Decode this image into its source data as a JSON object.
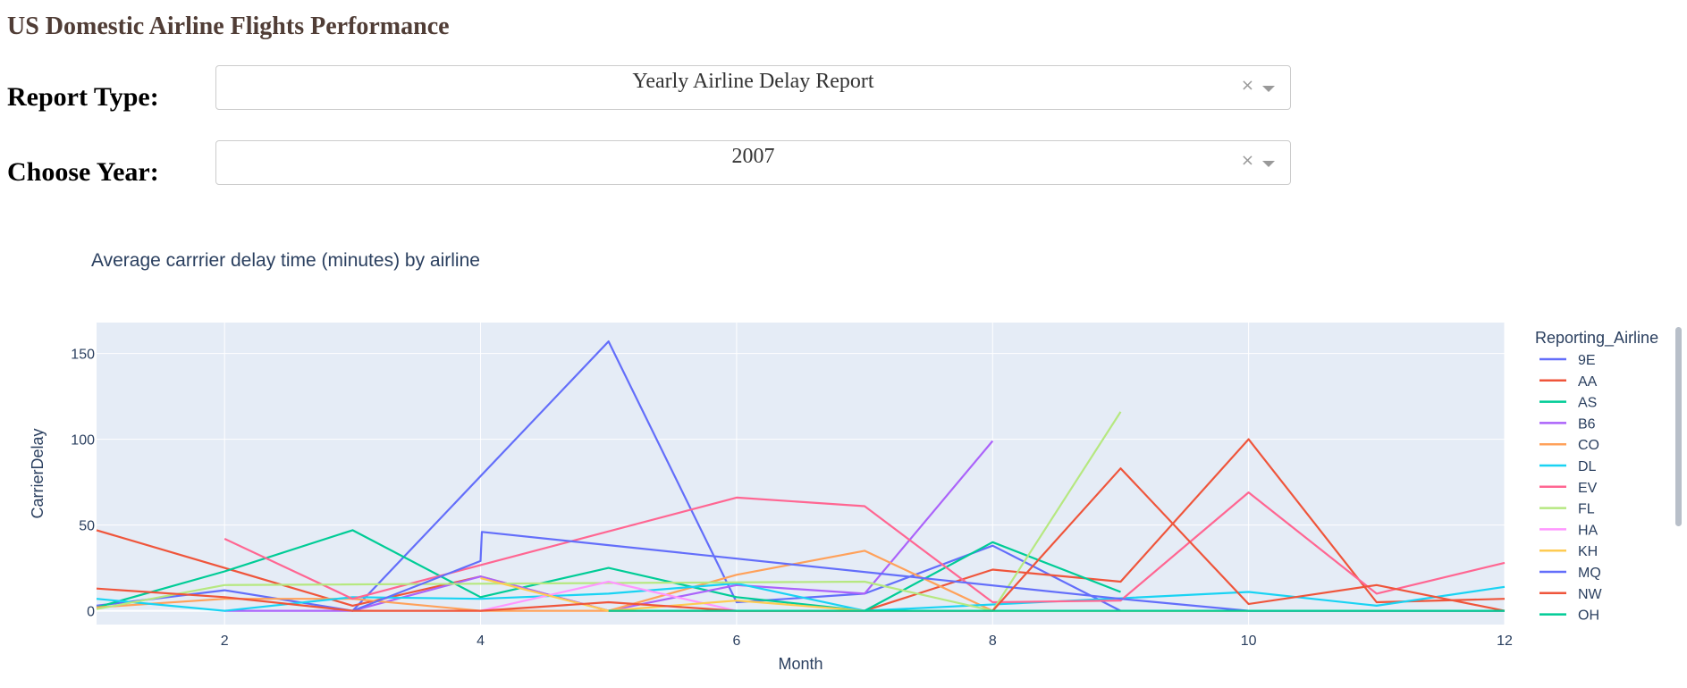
{
  "header": {
    "title": "US Domestic Airline Flights Performance"
  },
  "controls": {
    "report_type": {
      "label": "Report Type:",
      "value": "Yearly Airline Delay Report",
      "clear_icon": "×"
    },
    "year": {
      "label": "Choose Year:",
      "value": "2007",
      "clear_icon": "×"
    }
  },
  "chart_data": {
    "type": "line",
    "title": "Average carrrier delay time (minutes) by airline",
    "xlabel": "Month",
    "ylabel": "CarrierDelay",
    "xlim": [
      1,
      12
    ],
    "ylim": [
      -8,
      168
    ],
    "x_ticks": [
      2,
      4,
      6,
      8,
      10,
      12
    ],
    "y_ticks": [
      0,
      50,
      100,
      150
    ],
    "grid": true,
    "background": "#e5ecf6",
    "legend": {
      "title": "Reporting_Airline",
      "position": "right"
    },
    "series": [
      {
        "name": "9E",
        "color": "#636efa",
        "points": [
          [
            1,
            3
          ],
          [
            2,
            12
          ],
          [
            3,
            0
          ],
          [
            5,
            157
          ],
          [
            6,
            5
          ],
          [
            7,
            10
          ],
          [
            8,
            38
          ],
          [
            9,
            0
          ]
        ]
      },
      {
        "name": "AA",
        "color": "#ef553b",
        "points": [
          [
            1,
            47
          ],
          [
            2,
            25
          ],
          [
            3,
            3
          ],
          [
            4,
            20
          ],
          [
            5,
            0
          ],
          [
            6,
            0
          ],
          [
            7,
            0
          ],
          [
            8,
            24
          ],
          [
            9,
            17
          ],
          [
            10,
            100
          ],
          [
            11,
            5
          ],
          [
            12,
            7
          ]
        ]
      },
      {
        "name": "AS",
        "color": "#00cc96",
        "points": [
          [
            1,
            2
          ],
          [
            2,
            23
          ],
          [
            3,
            47
          ],
          [
            4,
            8
          ],
          [
            5,
            25
          ],
          [
            6,
            8
          ],
          [
            7,
            0
          ],
          [
            8,
            40
          ],
          [
            9,
            11
          ]
        ]
      },
      {
        "name": "B6",
        "color": "#ab63fa",
        "points": [
          [
            2,
            0
          ],
          [
            3,
            0
          ],
          [
            4,
            20
          ],
          [
            5,
            0
          ],
          [
            6,
            15
          ],
          [
            7,
            10
          ],
          [
            8,
            99
          ]
        ]
      },
      {
        "name": "CO",
        "color": "#ffa15a",
        "points": [
          [
            1,
            2
          ],
          [
            2,
            7
          ],
          [
            3,
            7
          ],
          [
            4,
            0
          ],
          [
            5,
            0
          ],
          [
            6,
            21
          ],
          [
            7,
            35
          ],
          [
            8,
            0
          ],
          [
            9,
            0
          ],
          [
            10,
            0
          ],
          [
            11,
            0
          ],
          [
            12,
            0
          ]
        ]
      },
      {
        "name": "DL",
        "color": "#19d3f3",
        "points": [
          [
            1,
            7
          ],
          [
            2,
            0
          ],
          [
            3,
            8
          ],
          [
            4,
            7
          ],
          [
            5,
            10
          ],
          [
            6,
            16
          ],
          [
            7,
            0
          ],
          [
            10,
            11
          ],
          [
            11,
            3
          ],
          [
            12,
            14
          ]
        ]
      },
      {
        "name": "EV",
        "color": "#ff6692",
        "points": [
          [
            2,
            42
          ],
          [
            3,
            7
          ],
          [
            6,
            66
          ],
          [
            7,
            61
          ],
          [
            8,
            5
          ],
          [
            9,
            6
          ],
          [
            10,
            69
          ],
          [
            11,
            10
          ],
          [
            12,
            28
          ]
        ]
      },
      {
        "name": "FL",
        "color": "#b6e880",
        "points": [
          [
            1,
            1
          ],
          [
            2,
            15
          ],
          [
            7,
            17
          ],
          [
            8,
            0
          ],
          [
            9,
            116
          ]
        ]
      },
      {
        "name": "HA",
        "color": "#ff97ff",
        "points": [
          [
            4,
            0
          ],
          [
            5,
            17
          ],
          [
            6,
            0
          ]
        ]
      },
      {
        "name": "KH",
        "color": "#fecb52",
        "points": [
          [
            4,
            19
          ],
          [
            5,
            0
          ],
          [
            6,
            6
          ],
          [
            7,
            0
          ],
          [
            9,
            0
          ],
          [
            10,
            0
          ],
          [
            11,
            0
          ],
          [
            12,
            0
          ]
        ]
      },
      {
        "name": "MQ",
        "color": "#636efa",
        "points": [
          [
            3,
            0
          ],
          [
            4,
            29
          ],
          [
            4.01,
            46
          ],
          [
            9,
            7
          ],
          [
            10,
            0
          ],
          [
            11,
            0
          ],
          [
            12,
            0
          ]
        ]
      },
      {
        "name": "NW",
        "color": "#ef553b",
        "points": [
          [
            1,
            13
          ],
          [
            2,
            8
          ],
          [
            3,
            0
          ],
          [
            4,
            0
          ],
          [
            5,
            5
          ],
          [
            6,
            0
          ],
          [
            7,
            0
          ],
          [
            8,
            0
          ],
          [
            9,
            83
          ],
          [
            10,
            4
          ],
          [
            11,
            15
          ],
          [
            12,
            0
          ]
        ]
      },
      {
        "name": "OH",
        "color": "#00cc96",
        "points": [
          [
            5,
            0
          ],
          [
            6,
            0
          ],
          [
            7,
            0
          ],
          [
            8,
            0
          ],
          [
            9,
            0
          ],
          [
            10,
            0
          ],
          [
            11,
            0
          ],
          [
            12,
            0
          ]
        ]
      }
    ]
  }
}
